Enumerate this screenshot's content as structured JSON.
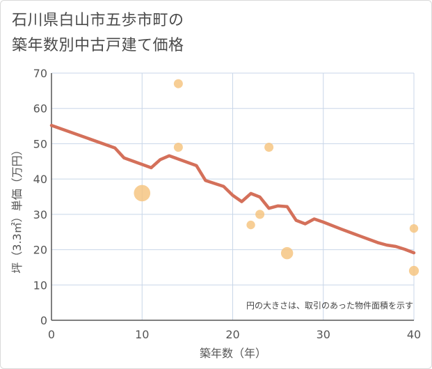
{
  "title_line1": "石川県白山市五歩市町の",
  "title_line2": "築年数別中古戸建て価格",
  "chart_data": {
    "type": "scatter",
    "xlabel": "築年数（年）",
    "ylabel": "坪（3.3㎡）単価（万円）",
    "xlim": [
      0,
      40
    ],
    "ylim": [
      0,
      70
    ],
    "xticks": [
      0,
      10,
      20,
      30,
      40
    ],
    "yticks": [
      0,
      10,
      20,
      30,
      40,
      50,
      60,
      70
    ],
    "grid": true,
    "note": "円の大きさは、取引のあった物件面積を示す",
    "colors": {
      "points": "#f5c27a",
      "line": "#d4705a",
      "grid": "#c8d6e8",
      "axis": "#555555"
    },
    "points": [
      {
        "x": 10,
        "y": 36,
        "size": 3.3
      },
      {
        "x": 14,
        "y": 67,
        "size": 1
      },
      {
        "x": 14,
        "y": 49,
        "size": 1
      },
      {
        "x": 24,
        "y": 49,
        "size": 1
      },
      {
        "x": 22,
        "y": 27,
        "size": 0.9
      },
      {
        "x": 23,
        "y": 30,
        "size": 1
      },
      {
        "x": 26,
        "y": 19,
        "size": 1.8
      },
      {
        "x": 40,
        "y": 26,
        "size": 0.9
      },
      {
        "x": 40,
        "y": 14,
        "size": 1.2
      }
    ],
    "trend_line": {
      "x": [
        0,
        7,
        8,
        11,
        12,
        13,
        16,
        17,
        19,
        20,
        21,
        22,
        23,
        24,
        25,
        26,
        27,
        28,
        29,
        30,
        32,
        34,
        36,
        37,
        38,
        39,
        40
      ],
      "y": [
        55.2,
        48.8,
        46,
        43.2,
        45.5,
        46.6,
        43.8,
        39.6,
        37.9,
        35.4,
        33.6,
        35.9,
        34.9,
        31.7,
        32.4,
        32.2,
        28.3,
        27.3,
        28.7,
        27.8,
        25.8,
        23.9,
        22,
        21.3,
        20.9,
        20.1,
        19.1
      ]
    }
  }
}
